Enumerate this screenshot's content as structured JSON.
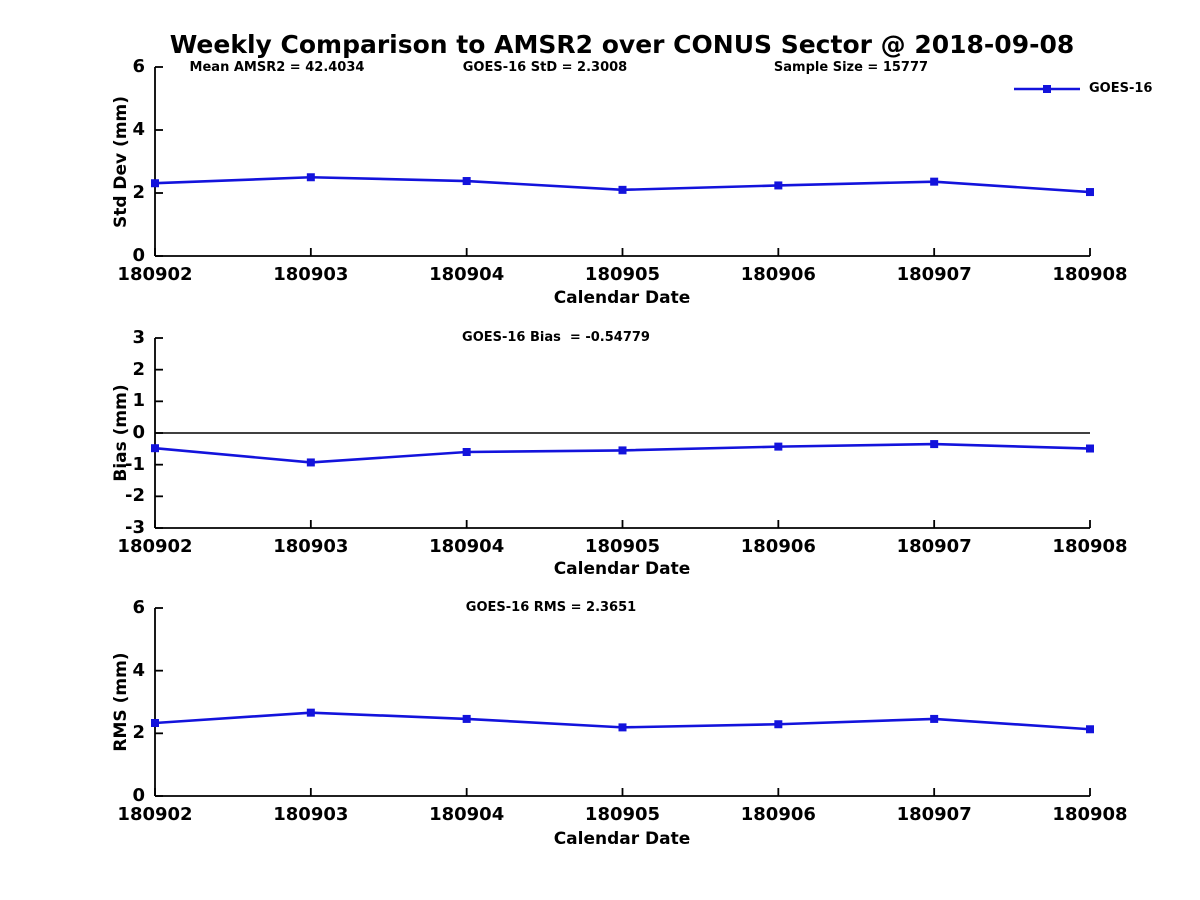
{
  "title": "Weekly Comparison to AMSR2 over CONUS Sector @ 2018-09-08",
  "legend": {
    "label": "GOES-16"
  },
  "colors": {
    "series": "#1313dc",
    "axis": "#000000",
    "text": "#000000",
    "background": "#ffffff"
  },
  "chart_data": [
    {
      "id": "std-dev",
      "type": "line",
      "title": "",
      "ylabel": "Std Dev (mm)",
      "xlabel": "Calendar Date",
      "annotations": [
        "Mean AMSR2 = 42.4034",
        "GOES-16 StD = 2.3008",
        "Sample Size = 15777"
      ],
      "categories": [
        "180902",
        "180903",
        "180904",
        "180905",
        "180906",
        "180907",
        "180908"
      ],
      "series": [
        {
          "name": "GOES-16",
          "marker": "filled-square",
          "values": [
            2.31,
            2.5,
            2.38,
            2.1,
            2.24,
            2.36,
            2.03
          ]
        }
      ],
      "ylim": [
        0,
        6
      ],
      "yticks": [
        0,
        2,
        4,
        6
      ],
      "zero_line": false,
      "grid": false,
      "legend_position": "top-right"
    },
    {
      "id": "bias",
      "type": "line",
      "title": "",
      "ylabel": "Bias (mm)",
      "xlabel": "Calendar Date",
      "annotation": "GOES-16 Bias  = -0.54779",
      "categories": [
        "180902",
        "180903",
        "180904",
        "180905",
        "180906",
        "180907",
        "180908"
      ],
      "series": [
        {
          "name": "GOES-16",
          "marker": "filled-square",
          "values": [
            -0.48,
            -0.93,
            -0.6,
            -0.55,
            -0.43,
            -0.35,
            -0.49
          ]
        }
      ],
      "ylim": [
        -3,
        3
      ],
      "yticks": [
        -3,
        -2,
        -1,
        0,
        1,
        2,
        3
      ],
      "zero_line": true,
      "grid": false
    },
    {
      "id": "rms",
      "type": "line",
      "title": "",
      "ylabel": "RMS (mm)",
      "xlabel": "Calendar Date",
      "annotation": "GOES-16 RMS = 2.3651",
      "categories": [
        "180902",
        "180903",
        "180904",
        "180905",
        "180906",
        "180907",
        "180908"
      ],
      "series": [
        {
          "name": "GOES-16",
          "marker": "filled-square",
          "values": [
            2.33,
            2.66,
            2.46,
            2.19,
            2.29,
            2.46,
            2.13
          ]
        }
      ],
      "ylim": [
        0,
        6
      ],
      "yticks": [
        0,
        2,
        4,
        6
      ],
      "zero_line": false,
      "grid": false
    }
  ]
}
